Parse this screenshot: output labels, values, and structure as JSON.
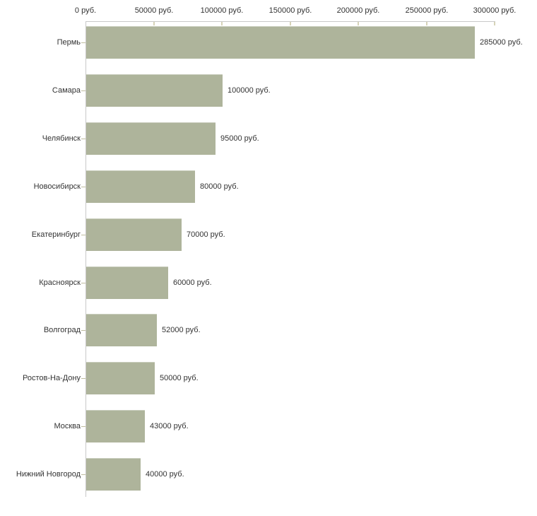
{
  "chart_data": {
    "type": "bar",
    "orientation": "horizontal",
    "title": "",
    "categories": [
      "Пермь",
      "Самара",
      "Челябинск",
      "Новосибирск",
      "Екатеринбург",
      "Красноярск",
      "Волгоград",
      "Ростов-На-Дону",
      "Москва",
      "Нижний Новгород"
    ],
    "values": [
      285000,
      100000,
      95000,
      80000,
      70000,
      60000,
      52000,
      50000,
      43000,
      40000
    ],
    "value_labels": [
      "285000 руб.",
      "100000 руб.",
      "95000 руб.",
      "80000 руб.",
      "70000 руб.",
      "60000 руб.",
      "52000 руб.",
      "50000 руб.",
      "43000 руб.",
      "40000 руб."
    ],
    "x_axis": {
      "position": "top",
      "unit": "руб.",
      "min": 0,
      "max": 300000,
      "ticks": [
        0,
        50000,
        100000,
        150000,
        200000,
        250000,
        300000
      ],
      "tick_labels": [
        "0 руб.",
        "50000 руб.",
        "100000 руб.",
        "150000 руб.",
        "200000 руб.",
        "250000 руб.",
        "300000 руб."
      ]
    },
    "grid": false,
    "legend": null,
    "colors": {
      "bar_fill": "#aeb49b",
      "axis_line": "#c9c9c9",
      "axis_tick": "#d6d3b8",
      "category_tick": "#bfbc9f",
      "text": "#333333",
      "background": "#ffffff"
    }
  }
}
